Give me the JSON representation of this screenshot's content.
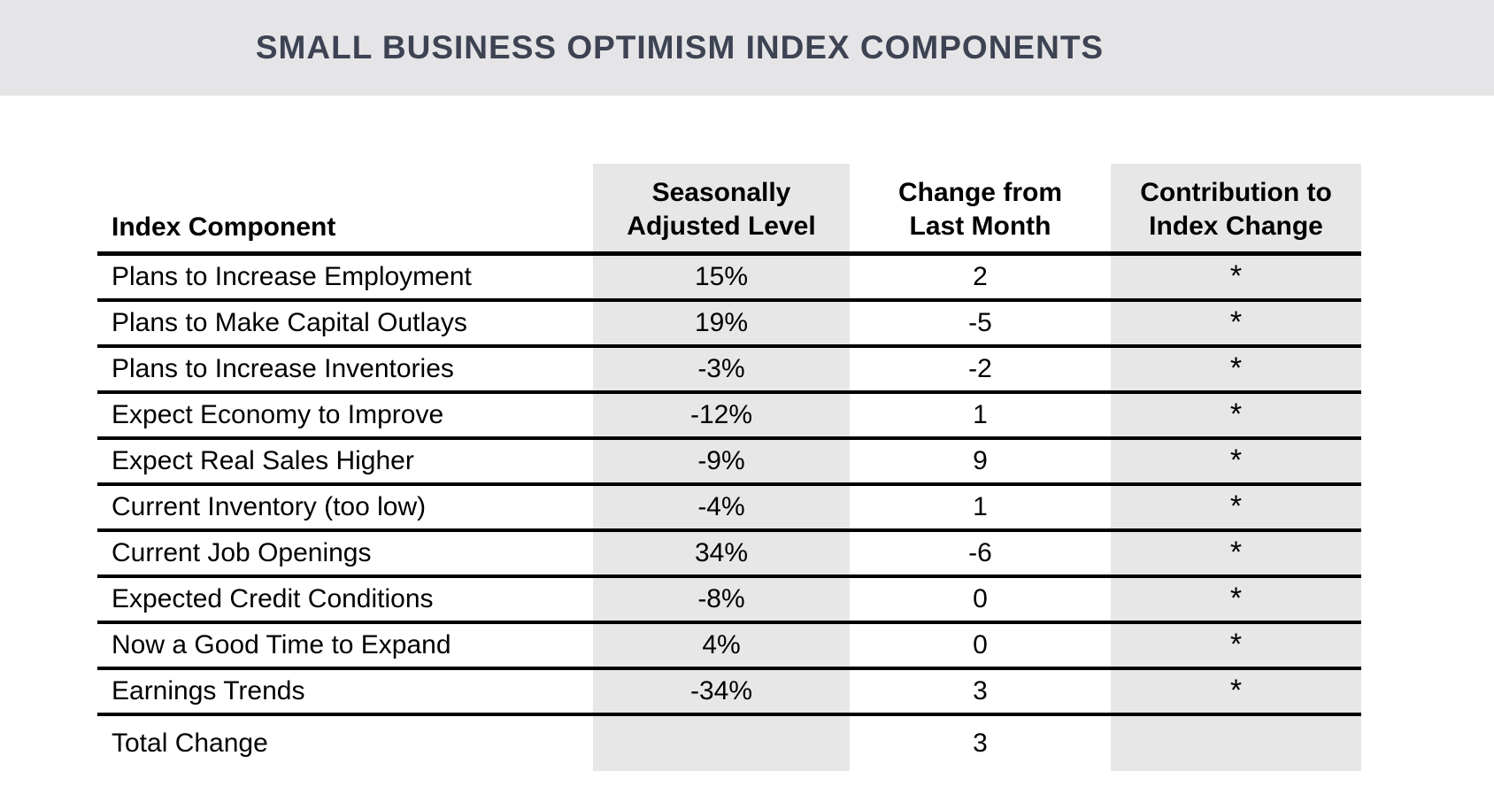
{
  "title": "SMALL BUSINESS OPTIMISM INDEX COMPONENTS",
  "colors": {
    "band_bg": "#e5e5e7",
    "column_bg": "#e7e7e7",
    "title_color": "#3d4352",
    "line_color": "#000000"
  },
  "table": {
    "headers": {
      "component": "Index Component",
      "level": {
        "line1": "Seasonally",
        "line2": "Adjusted Level"
      },
      "change": {
        "line1": "Change from",
        "line2": "Last Month"
      },
      "contribution": {
        "line1": "Contribution to",
        "line2": "Index Change"
      }
    },
    "rows": [
      {
        "component": "Plans to Increase Employment",
        "level": "15%",
        "change": "2",
        "contribution": "*"
      },
      {
        "component": "Plans to Make Capital Outlays",
        "level": "19%",
        "change": "-5",
        "contribution": "*"
      },
      {
        "component": "Plans to Increase Inventories",
        "level": "-3%",
        "change": "-2",
        "contribution": "*"
      },
      {
        "component": "Expect Economy to Improve",
        "level": "-12%",
        "change": "1",
        "contribution": "*"
      },
      {
        "component": "Expect Real Sales Higher",
        "level": "-9%",
        "change": "9",
        "contribution": "*"
      },
      {
        "component": "Current Inventory (too low)",
        "level": "-4%",
        "change": "1",
        "contribution": "*"
      },
      {
        "component": "Current Job Openings",
        "level": "34%",
        "change": "-6",
        "contribution": "*"
      },
      {
        "component": "Expected Credit Conditions",
        "level": "-8%",
        "change": "0",
        "contribution": "*"
      },
      {
        "component": "Now a Good Time to Expand",
        "level": "4%",
        "change": "0",
        "contribution": "*"
      },
      {
        "component": "Earnings Trends",
        "level": "-34%",
        "change": "3",
        "contribution": "*"
      }
    ],
    "total_row": {
      "component": "Total Change",
      "level": "",
      "change": "3",
      "contribution": ""
    }
  },
  "chart_data": {
    "type": "table",
    "title": "SMALL BUSINESS OPTIMISM INDEX COMPONENTS",
    "columns": [
      "Index Component",
      "Seasonally Adjusted Level",
      "Change from Last Month",
      "Contribution to Index Change"
    ],
    "rows": [
      [
        "Plans to Increase Employment",
        "15%",
        2,
        "*"
      ],
      [
        "Plans to Make Capital Outlays",
        "19%",
        -5,
        "*"
      ],
      [
        "Plans to Increase Inventories",
        "-3%",
        -2,
        "*"
      ],
      [
        "Expect Economy to Improve",
        "-12%",
        1,
        "*"
      ],
      [
        "Expect Real Sales Higher",
        "-9%",
        9,
        "*"
      ],
      [
        "Current Inventory (too low)",
        "-4%",
        1,
        "*"
      ],
      [
        "Current Job Openings",
        "34%",
        -6,
        "*"
      ],
      [
        "Expected Credit Conditions",
        "-8%",
        0,
        "*"
      ],
      [
        "Now a Good Time to Expand",
        "4%",
        0,
        "*"
      ],
      [
        "Earnings Trends",
        "-34%",
        3,
        "*"
      ],
      [
        "Total Change",
        "",
        3,
        ""
      ]
    ]
  }
}
